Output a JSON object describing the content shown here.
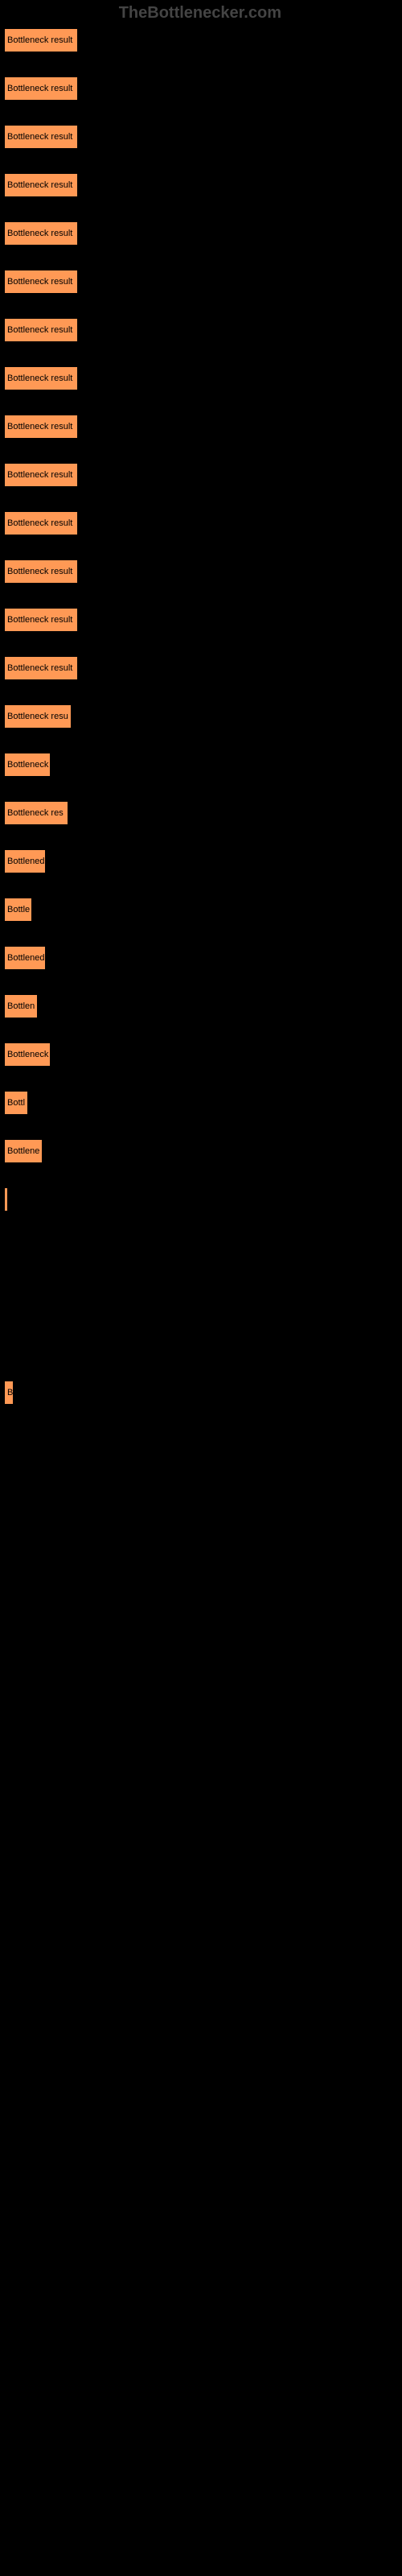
{
  "watermark": "TheBottlenecker.com",
  "bars": [
    {
      "label": "Bottleneck result",
      "width": 92
    },
    {
      "label": "Bottleneck result",
      "width": 92
    },
    {
      "label": "Bottleneck result",
      "width": 92
    },
    {
      "label": "Bottleneck result",
      "width": 92
    },
    {
      "label": "Bottleneck result",
      "width": 92
    },
    {
      "label": "Bottleneck result",
      "width": 92
    },
    {
      "label": "Bottleneck result",
      "width": 92
    },
    {
      "label": "Bottleneck result",
      "width": 92
    },
    {
      "label": "Bottleneck result",
      "width": 92
    },
    {
      "label": "Bottleneck result",
      "width": 92
    },
    {
      "label": "Bottleneck result",
      "width": 92
    },
    {
      "label": "Bottleneck result",
      "width": 92
    },
    {
      "label": "Bottleneck result",
      "width": 92
    },
    {
      "label": "Bottleneck result",
      "width": 92
    },
    {
      "label": "Bottleneck resu",
      "width": 84
    },
    {
      "label": "Bottleneck",
      "width": 58
    },
    {
      "label": "Bottleneck res",
      "width": 80
    },
    {
      "label": "Bottlened",
      "width": 52
    },
    {
      "label": "Bottle",
      "width": 35
    },
    {
      "label": "Bottlened",
      "width": 52
    },
    {
      "label": "Bottlen",
      "width": 42
    },
    {
      "label": "Bottleneck",
      "width": 58
    },
    {
      "label": "Bottl",
      "width": 30
    },
    {
      "label": "Bottlene",
      "width": 48
    },
    {
      "label": "",
      "width": 5
    },
    {
      "label": "",
      "width": 0
    },
    {
      "label": "",
      "width": 0
    },
    {
      "label": "",
      "width": 0
    },
    {
      "label": "B",
      "width": 12
    },
    {
      "label": "",
      "width": 0
    },
    {
      "label": "",
      "width": 0
    },
    {
      "label": "",
      "width": 0
    },
    {
      "label": "",
      "width": 0
    },
    {
      "label": "",
      "width": 0
    },
    {
      "label": "",
      "width": 0
    },
    {
      "label": "",
      "width": 0
    },
    {
      "label": "",
      "width": 0
    },
    {
      "label": "",
      "width": 0
    },
    {
      "label": "",
      "width": 0
    },
    {
      "label": "",
      "width": 0
    },
    {
      "label": "",
      "width": 0
    },
    {
      "label": "",
      "width": 0
    },
    {
      "label": "",
      "width": 0
    },
    {
      "label": "",
      "width": 0
    },
    {
      "label": "",
      "width": 0
    },
    {
      "label": "",
      "width": 0
    },
    {
      "label": "",
      "width": 0
    },
    {
      "label": "",
      "width": 0
    },
    {
      "label": "",
      "width": 0
    },
    {
      "label": "",
      "width": 0
    },
    {
      "label": "",
      "width": 0
    },
    {
      "label": "",
      "width": 0
    }
  ],
  "colors": {
    "bar_fill": "#ff9955",
    "bar_border": "#000000",
    "background": "#000000",
    "watermark": "#444444",
    "label_text": "#000000"
  }
}
